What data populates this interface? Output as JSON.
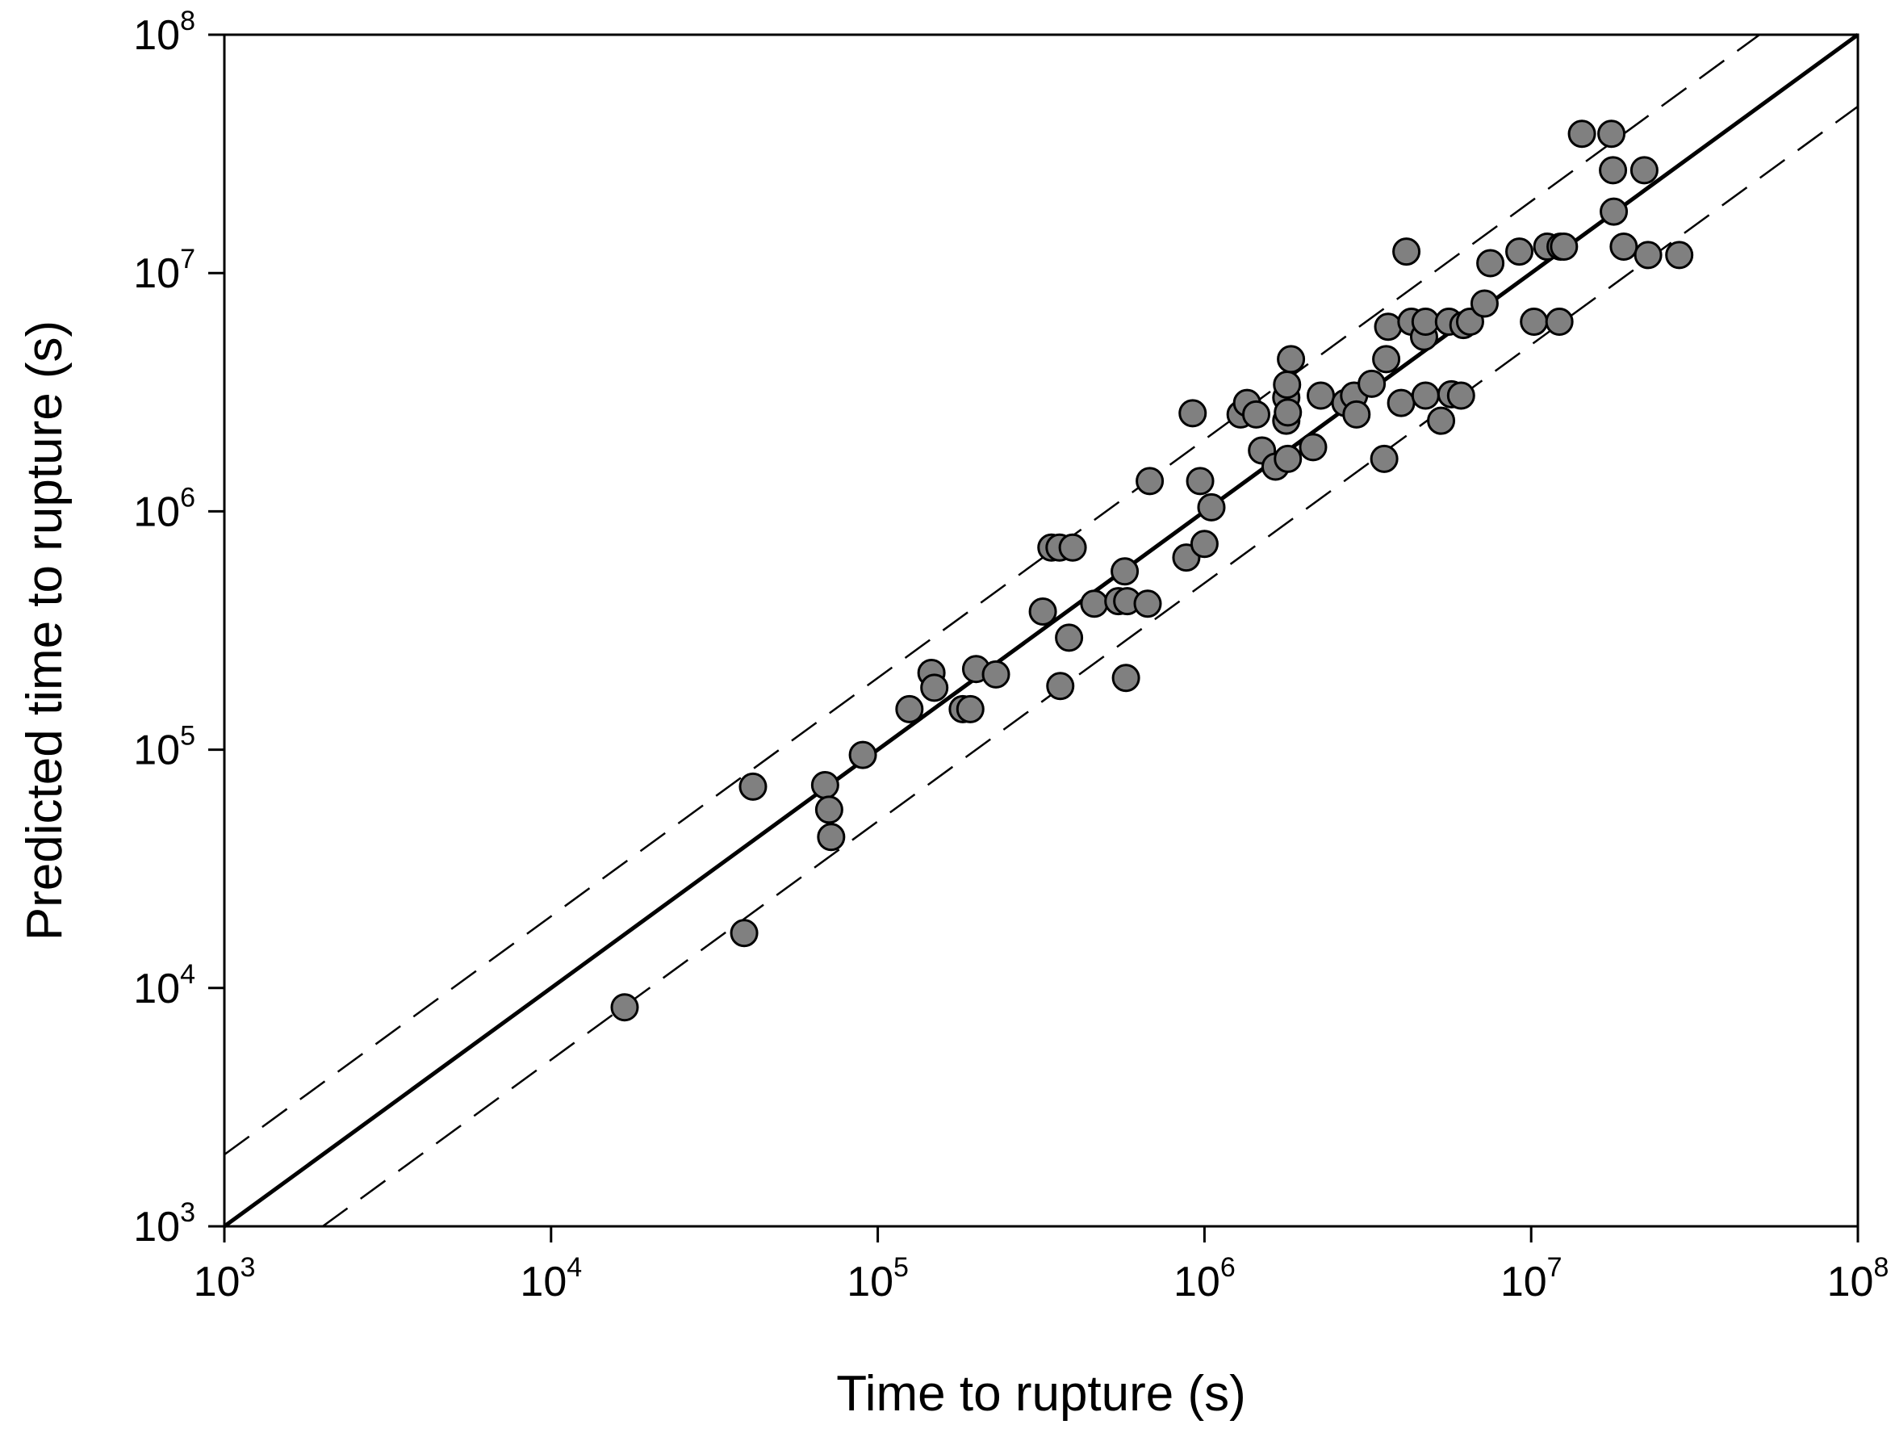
{
  "chart_data": {
    "type": "scatter",
    "xlabel": "Time to rupture (s)",
    "ylabel": "Predicted time to rupture (s)",
    "xscale": "log",
    "yscale": "log",
    "xlim": [
      1000,
      100000000
    ],
    "ylim": [
      1000,
      100000000
    ],
    "ticks": [
      {
        "base": "10",
        "exp": "3",
        "value": 1000
      },
      {
        "base": "10",
        "exp": "4",
        "value": 10000
      },
      {
        "base": "10",
        "exp": "5",
        "value": 100000
      },
      {
        "base": "10",
        "exp": "6",
        "value": 1000000
      },
      {
        "base": "10",
        "exp": "7",
        "value": 10000000
      },
      {
        "base": "10",
        "exp": "8",
        "value": 100000000
      }
    ],
    "grid": false,
    "legend": "none",
    "reference_lines": [
      {
        "kind": "y = x",
        "style": "solid",
        "factor": 1
      },
      {
        "kind": "y = 2x",
        "style": "dashed",
        "factor": 2
      },
      {
        "kind": "y = x/2",
        "style": "dashed",
        "factor": 0.5
      }
    ],
    "colors": {
      "marker_fill": "#808080",
      "marker_edge": "#000000",
      "lines": "#000000"
    },
    "points": [
      [
        16800,
        8300
      ],
      [
        39000,
        17000
      ],
      [
        41500,
        70000
      ],
      [
        69000,
        71000
      ],
      [
        71000,
        56000
      ],
      [
        72000,
        43000
      ],
      [
        90000,
        95000
      ],
      [
        125000,
        148000
      ],
      [
        146000,
        210000
      ],
      [
        149000,
        182000
      ],
      [
        182000,
        148000
      ],
      [
        192000,
        148000
      ],
      [
        200000,
        218000
      ],
      [
        230000,
        207000
      ],
      [
        320000,
        380000
      ],
      [
        340000,
        705000
      ],
      [
        360000,
        705000
      ],
      [
        362000,
        185000
      ],
      [
        385000,
        295000
      ],
      [
        395000,
        705000
      ],
      [
        460000,
        410000
      ],
      [
        545000,
        420000
      ],
      [
        570000,
        560000
      ],
      [
        575000,
        200000
      ],
      [
        580000,
        420000
      ],
      [
        670000,
        410000
      ],
      [
        680000,
        1340000
      ],
      [
        880000,
        640000
      ],
      [
        920000,
        2580000
      ],
      [
        970000,
        1340000
      ],
      [
        1000000,
        730000
      ],
      [
        1050000,
        1040000
      ],
      [
        1290000,
        2550000
      ],
      [
        1350000,
        2850000
      ],
      [
        1440000,
        2550000
      ],
      [
        1500000,
        1800000
      ],
      [
        1650000,
        1540000
      ],
      [
        1780000,
        3000000
      ],
      [
        1780000,
        2400000
      ],
      [
        1790000,
        3400000
      ],
      [
        1800000,
        1660000
      ],
      [
        1800000,
        2600000
      ],
      [
        1840000,
        4350000
      ],
      [
        2150000,
        1860000
      ],
      [
        2270000,
        3060000
      ],
      [
        2700000,
        2850000
      ],
      [
        2870000,
        3060000
      ],
      [
        2920000,
        2550000
      ],
      [
        3250000,
        3430000
      ],
      [
        3550000,
        1660000
      ],
      [
        3600000,
        4350000
      ],
      [
        3650000,
        5950000
      ],
      [
        4000000,
        2850000
      ],
      [
        4150000,
        12300000
      ],
      [
        4300000,
        6250000
      ],
      [
        4700000,
        5400000
      ],
      [
        4750000,
        6250000
      ],
      [
        4750000,
        3060000
      ],
      [
        5300000,
        2400000
      ],
      [
        5600000,
        6250000
      ],
      [
        5700000,
        3100000
      ],
      [
        6100000,
        3060000
      ],
      [
        6200000,
        6050000
      ],
      [
        6500000,
        6250000
      ],
      [
        7200000,
        7450000
      ],
      [
        7500000,
        11000000
      ],
      [
        9200000,
        12300000
      ],
      [
        10200000,
        6250000
      ],
      [
        11200000,
        12900000
      ],
      [
        12200000,
        6250000
      ],
      [
        12300000,
        12900000
      ],
      [
        12600000,
        12900000
      ],
      [
        14300000,
        38400000
      ],
      [
        17600000,
        38400000
      ],
      [
        17800000,
        27000000
      ],
      [
        17900000,
        18100000
      ],
      [
        19200000,
        12900000
      ],
      [
        22200000,
        27000000
      ],
      [
        22800000,
        11900000
      ],
      [
        28400000,
        11900000
      ]
    ]
  }
}
